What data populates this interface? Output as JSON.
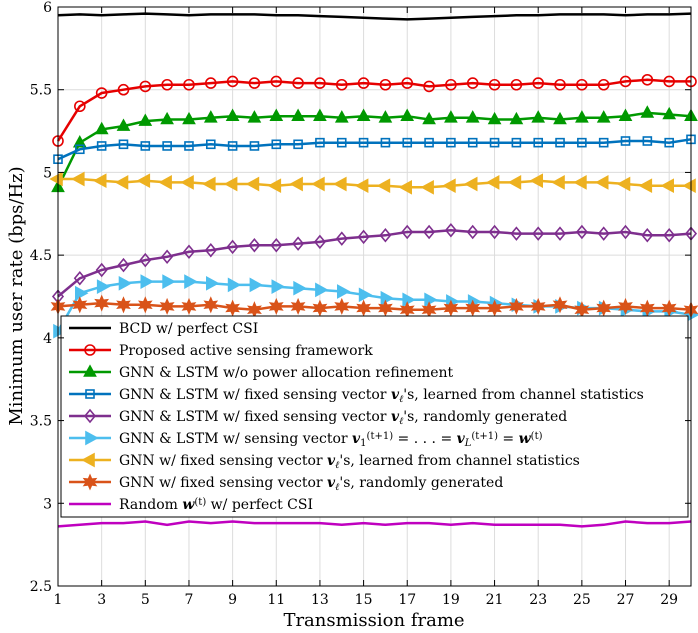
{
  "chart_data": {
    "type": "line",
    "title": "",
    "xlabel": "Transmission frame",
    "ylabel": "Minimum user rate (bps/Hz)",
    "xlim": [
      1,
      30
    ],
    "ylim": [
      2.5,
      6
    ],
    "xticks": [
      "1",
      "3",
      "5",
      "7",
      "9",
      "11",
      "13",
      "15",
      "17",
      "19",
      "21",
      "23",
      "25",
      "27",
      "29"
    ],
    "yticks": [
      "2.5",
      "3",
      "3.5",
      "4",
      "4.5",
      "5",
      "5.5",
      "6"
    ],
    "grid": true,
    "legend_position": "lower-left, inside",
    "x": [
      1,
      2,
      3,
      4,
      5,
      6,
      7,
      8,
      9,
      10,
      11,
      12,
      13,
      14,
      15,
      16,
      17,
      18,
      19,
      20,
      21,
      22,
      23,
      24,
      25,
      26,
      27,
      28,
      29,
      30
    ],
    "series": [
      {
        "name": "BCD w/ perfect CSI",
        "color": "#000000",
        "marker": "none",
        "values": [
          5.95,
          5.955,
          5.95,
          5.955,
          5.96,
          5.955,
          5.95,
          5.955,
          5.955,
          5.955,
          5.95,
          5.95,
          5.945,
          5.94,
          5.935,
          5.93,
          5.925,
          5.93,
          5.935,
          5.94,
          5.945,
          5.95,
          5.95,
          5.955,
          5.955,
          5.955,
          5.95,
          5.955,
          5.955,
          5.96
        ]
      },
      {
        "name": "Proposed active sensing framework",
        "color": "#e60000",
        "marker": "circle",
        "values": [
          5.19,
          5.4,
          5.48,
          5.5,
          5.52,
          5.53,
          5.53,
          5.54,
          5.55,
          5.54,
          5.55,
          5.54,
          5.54,
          5.53,
          5.54,
          5.53,
          5.54,
          5.52,
          5.53,
          5.54,
          5.53,
          5.53,
          5.54,
          5.53,
          5.53,
          5.53,
          5.55,
          5.56,
          5.55,
          5.55
        ]
      },
      {
        "name": "GNN & LSTM w/o power allocation refinement",
        "color": "#009900",
        "marker": "triangle-up",
        "values": [
          4.91,
          5.18,
          5.26,
          5.28,
          5.31,
          5.32,
          5.32,
          5.33,
          5.34,
          5.33,
          5.34,
          5.34,
          5.34,
          5.33,
          5.34,
          5.33,
          5.34,
          5.32,
          5.33,
          5.33,
          5.32,
          5.32,
          5.33,
          5.32,
          5.33,
          5.33,
          5.34,
          5.36,
          5.35,
          5.34
        ]
      },
      {
        "name": "GNN & LSTM w/ fixed sensing vector $\\boldsymbol{v}_\\ell$'s, learned from channel statistics",
        "color": "#0072bd",
        "marker": "square",
        "values": [
          5.08,
          5.14,
          5.16,
          5.17,
          5.16,
          5.16,
          5.16,
          5.17,
          5.16,
          5.16,
          5.17,
          5.17,
          5.18,
          5.18,
          5.18,
          5.18,
          5.18,
          5.18,
          5.18,
          5.18,
          5.18,
          5.18,
          5.18,
          5.18,
          5.18,
          5.18,
          5.19,
          5.19,
          5.18,
          5.2
        ]
      },
      {
        "name": "GNN & LSTM w/ fixed sensing vector $\\boldsymbol{v}_\\ell$'s, randomly generated",
        "color": "#7e2f8e",
        "marker": "diamond",
        "values": [
          4.25,
          4.36,
          4.41,
          4.44,
          4.47,
          4.49,
          4.52,
          4.53,
          4.55,
          4.56,
          4.56,
          4.57,
          4.58,
          4.6,
          4.61,
          4.62,
          4.64,
          4.64,
          4.65,
          4.64,
          4.64,
          4.63,
          4.63,
          4.63,
          4.64,
          4.63,
          4.64,
          4.62,
          4.62,
          4.63
        ]
      },
      {
        "name": "GNN & LSTM w/ sensing vector $\\boldsymbol{v}_1^{(t+1)}=\\ldots=\\boldsymbol{v}_L^{(t+1)}=\\boldsymbol{w}^{(t)}$",
        "color": "#4dbeee",
        "marker": "triangle-right",
        "values": [
          4.04,
          4.27,
          4.31,
          4.33,
          4.34,
          4.34,
          4.34,
          4.33,
          4.32,
          4.32,
          4.31,
          4.3,
          4.29,
          4.28,
          4.26,
          4.24,
          4.23,
          4.23,
          4.22,
          4.22,
          4.21,
          4.2,
          4.19,
          4.19,
          4.18,
          4.18,
          4.17,
          4.16,
          4.16,
          4.14
        ]
      },
      {
        "name": "GNN w/ fixed sensing vector $\\boldsymbol{v}_\\ell$'s, learned from channel statistics",
        "color": "#edb120",
        "marker": "triangle-left",
        "values": [
          4.96,
          4.96,
          4.95,
          4.94,
          4.95,
          4.94,
          4.94,
          4.93,
          4.93,
          4.93,
          4.92,
          4.93,
          4.93,
          4.93,
          4.92,
          4.92,
          4.91,
          4.91,
          4.92,
          4.93,
          4.94,
          4.94,
          4.95,
          4.94,
          4.94,
          4.94,
          4.93,
          4.92,
          4.92,
          4.92
        ]
      },
      {
        "name": "GNN w/ fixed sensing vector $\\boldsymbol{v}_\\ell$'s, randomly generated",
        "color": "#d95319",
        "marker": "hexagram",
        "values": [
          4.19,
          4.2,
          4.21,
          4.2,
          4.2,
          4.19,
          4.19,
          4.2,
          4.18,
          4.17,
          4.19,
          4.19,
          4.18,
          4.19,
          4.18,
          4.18,
          4.17,
          4.17,
          4.18,
          4.18,
          4.18,
          4.19,
          4.19,
          4.2,
          4.17,
          4.18,
          4.19,
          4.18,
          4.18,
          4.17
        ]
      },
      {
        "name": "Random $\\boldsymbol{w}^{(t)}$ w/ perfect CSI",
        "color": "#bf00bf",
        "marker": "none",
        "values": [
          2.86,
          2.87,
          2.88,
          2.88,
          2.89,
          2.87,
          2.89,
          2.88,
          2.89,
          2.88,
          2.88,
          2.88,
          2.88,
          2.87,
          2.88,
          2.87,
          2.88,
          2.88,
          2.87,
          2.88,
          2.87,
          2.87,
          2.87,
          2.87,
          2.86,
          2.87,
          2.89,
          2.88,
          2.88,
          2.89
        ]
      }
    ]
  },
  "legend_rows": [
    [
      {
        "t": "BCD w/ perfect CSI"
      }
    ],
    [
      {
        "t": "Proposed active sensing framework"
      }
    ],
    [
      {
        "t": "GNN & LSTM w/o power allocation refinement"
      }
    ],
    [
      {
        "t": "GNN & LSTM w/ fixed sensing vector "
      },
      {
        "t": "v",
        "b": true,
        "i": true
      },
      {
        "t": "ℓ",
        "i": true,
        "sub": true
      },
      {
        "t": "'s, learned from channel statistics"
      }
    ],
    [
      {
        "t": "GNN & LSTM w/ fixed sensing vector "
      },
      {
        "t": "v",
        "b": true,
        "i": true
      },
      {
        "t": "ℓ",
        "i": true,
        "sub": true
      },
      {
        "t": "'s, randomly generated"
      }
    ],
    [
      {
        "t": "GNN & LSTM w/ sensing vector "
      },
      {
        "t": "v",
        "b": true,
        "i": true
      },
      {
        "t": "1",
        "sub": true
      },
      {
        "t": "(t+1)",
        "sup": true
      },
      {
        "t": " = . . . = "
      },
      {
        "t": "v",
        "b": true,
        "i": true
      },
      {
        "t": "L",
        "sub": true,
        "i": true
      },
      {
        "t": "(t+1)",
        "sup": true
      },
      {
        "t": " = "
      },
      {
        "t": "w",
        "b": true,
        "i": true
      },
      {
        "t": "(t)",
        "sup": true
      }
    ],
    [
      {
        "t": "GNN w/ fixed sensing vector "
      },
      {
        "t": "v",
        "b": true,
        "i": true
      },
      {
        "t": "ℓ",
        "i": true,
        "sub": true
      },
      {
        "t": "'s, learned from channel statistics"
      }
    ],
    [
      {
        "t": "GNN w/ fixed sensing vector "
      },
      {
        "t": "v",
        "b": true,
        "i": true
      },
      {
        "t": "ℓ",
        "i": true,
        "sub": true
      },
      {
        "t": "'s, randomly generated"
      }
    ],
    [
      {
        "t": "Random "
      },
      {
        "t": "w",
        "b": true,
        "i": true
      },
      {
        "t": "(t)",
        "sup": true
      },
      {
        "t": " w/ perfect CSI"
      }
    ]
  ]
}
